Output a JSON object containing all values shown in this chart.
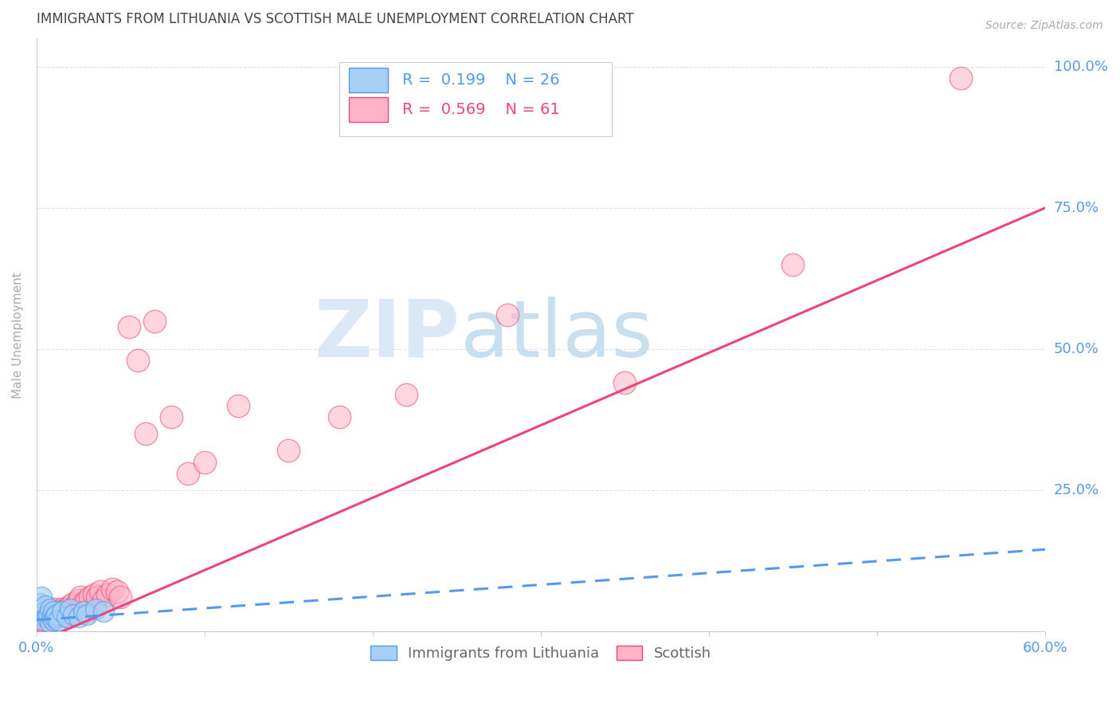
{
  "title": "IMMIGRANTS FROM LITHUANIA VS SCOTTISH MALE UNEMPLOYMENT CORRELATION CHART",
  "source": "Source: ZipAtlas.com",
  "ylabel_label": "Male Unemployment",
  "watermark_zip": "ZIP",
  "watermark_atlas": "atlas",
  "r_lithuania": 0.199,
  "n_lithuania": 26,
  "r_scottish": 0.569,
  "n_scottish": 61,
  "xlim": [
    0.0,
    0.6
  ],
  "ylim": [
    0.0,
    1.05
  ],
  "color_lithuania": "#a8d0f5",
  "color_scottish": "#ffb3c6",
  "color_trend_lithuania": "#5599ee",
  "color_trend_scottish": "#ee4477",
  "color_title": "#444444",
  "color_source": "#aaaaaa",
  "color_axis_label": "#aaaaaa",
  "color_tick": "#5599ee",
  "color_grid": "#e0e0e0",
  "background_color": "#ffffff",
  "watermark_color": "#dce8f5",
  "lit_x": [
    0.001,
    0.002,
    0.003,
    0.003,
    0.004,
    0.005,
    0.005,
    0.006,
    0.007,
    0.008,
    0.008,
    0.009,
    0.01,
    0.01,
    0.011,
    0.012,
    0.013,
    0.015,
    0.018,
    0.02,
    0.022,
    0.025,
    0.028,
    0.03,
    0.035,
    0.04
  ],
  "lit_y": [
    0.03,
    0.05,
    0.04,
    0.06,
    0.02,
    0.035,
    0.045,
    0.025,
    0.03,
    0.04,
    0.015,
    0.025,
    0.02,
    0.035,
    0.025,
    0.03,
    0.02,
    0.035,
    0.025,
    0.04,
    0.03,
    0.025,
    0.035,
    0.03,
    0.04,
    0.035
  ],
  "sco_x": [
    0.001,
    0.001,
    0.002,
    0.002,
    0.003,
    0.003,
    0.004,
    0.004,
    0.005,
    0.005,
    0.006,
    0.006,
    0.007,
    0.007,
    0.008,
    0.009,
    0.009,
    0.01,
    0.011,
    0.011,
    0.012,
    0.013,
    0.014,
    0.015,
    0.016,
    0.017,
    0.018,
    0.019,
    0.02,
    0.021,
    0.022,
    0.023,
    0.025,
    0.026,
    0.028,
    0.03,
    0.03,
    0.032,
    0.034,
    0.036,
    0.038,
    0.04,
    0.042,
    0.045,
    0.048,
    0.05,
    0.055,
    0.06,
    0.065,
    0.07,
    0.08,
    0.09,
    0.1,
    0.12,
    0.15,
    0.18,
    0.22,
    0.28,
    0.35,
    0.45,
    0.55
  ],
  "sco_y": [
    0.015,
    0.025,
    0.01,
    0.02,
    0.015,
    0.025,
    0.02,
    0.03,
    0.015,
    0.025,
    0.02,
    0.03,
    0.025,
    0.035,
    0.02,
    0.025,
    0.035,
    0.025,
    0.03,
    0.04,
    0.025,
    0.035,
    0.03,
    0.04,
    0.035,
    0.03,
    0.04,
    0.035,
    0.045,
    0.03,
    0.05,
    0.045,
    0.055,
    0.06,
    0.05,
    0.035,
    0.055,
    0.06,
    0.065,
    0.06,
    0.07,
    0.055,
    0.065,
    0.075,
    0.07,
    0.06,
    0.54,
    0.48,
    0.35,
    0.55,
    0.38,
    0.28,
    0.3,
    0.4,
    0.32,
    0.38,
    0.42,
    0.56,
    0.44,
    0.65,
    0.98
  ],
  "trend_sco_x0": 0.0,
  "trend_sco_y0": -0.02,
  "trend_sco_x1": 0.6,
  "trend_sco_y1": 0.75,
  "trend_lit_x0": 0.0,
  "trend_lit_y0": 0.02,
  "trend_lit_x1": 0.6,
  "trend_lit_y1": 0.145
}
